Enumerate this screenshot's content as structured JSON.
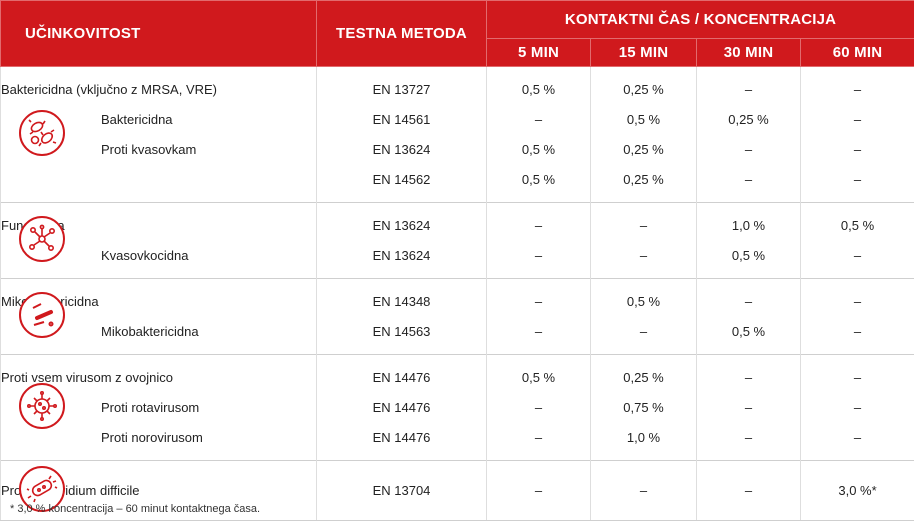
{
  "header": {
    "efficacy": "UČINKOVITOST",
    "method": "TESTNA METODA",
    "contact": "KONTAKTNI ČAS / KONCENTRACIJA",
    "times": [
      "5 MIN",
      "15 MIN",
      "30 MIN",
      "60 MIN"
    ]
  },
  "groups": [
    {
      "icon": "bacteria-icon",
      "rows": [
        {
          "name": "Baktericidna (vključno z MRSA, VRE)",
          "method": "EN 13727",
          "v": [
            "0,5 %",
            "0,25 %",
            "–",
            "–"
          ]
        },
        {
          "name": "Baktericidna",
          "method": "EN 14561",
          "v": [
            "–",
            "0,5 %",
            "0,25 %",
            "–"
          ]
        },
        {
          "name": "Proti kvasovkam",
          "method": "EN 13624",
          "v": [
            "0,5 %",
            "0,25 %",
            "–",
            "–"
          ]
        },
        {
          "name": "",
          "method": "EN 14562",
          "v": [
            "0,5 %",
            "0,25 %",
            "–",
            "–"
          ]
        }
      ]
    },
    {
      "icon": "fungi-icon",
      "rows": [
        {
          "name": "Fungicidna",
          "method": "EN 13624",
          "v": [
            "–",
            "–",
            "1,0 %",
            "0,5 %"
          ]
        },
        {
          "name": "Kvasovkocidna",
          "method": "EN 13624",
          "v": [
            "–",
            "–",
            "0,5 %",
            "–"
          ]
        }
      ]
    },
    {
      "icon": "mycobacteria-icon",
      "rows": [
        {
          "name": "Mikobaktericidna",
          "method": "EN 14348",
          "v": [
            "–",
            "0,5 %",
            "–",
            "–"
          ]
        },
        {
          "name": "Mikobaktericidna",
          "method": "EN 14563",
          "v": [
            "–",
            "–",
            "0,5 %",
            "–"
          ]
        }
      ]
    },
    {
      "icon": "virus-icon",
      "rows": [
        {
          "name": "Proti vsem virusom z ovojnico",
          "method": "EN 14476",
          "v": [
            "0,5 %",
            "0,25 %",
            "–",
            "–"
          ]
        },
        {
          "name": "Proti rotavirusom",
          "method": "EN 14476",
          "v": [
            "–",
            "0,75 %",
            "–",
            "–"
          ]
        },
        {
          "name": "Proti norovirusom",
          "method": "EN 14476",
          "v": [
            "–",
            "1,0 %",
            "–",
            "–"
          ]
        }
      ]
    },
    {
      "icon": "clostridium-icon",
      "rows": [
        {
          "name": "Proti Clostridium difficile",
          "method": "EN 13704",
          "v": [
            "–",
            "–",
            "–",
            "3,0 %*"
          ]
        }
      ]
    }
  ],
  "footnote": "* 3,0 % koncentracija – 60 minut kontaktnega časa.",
  "colors": {
    "brand": "#d0191d"
  }
}
